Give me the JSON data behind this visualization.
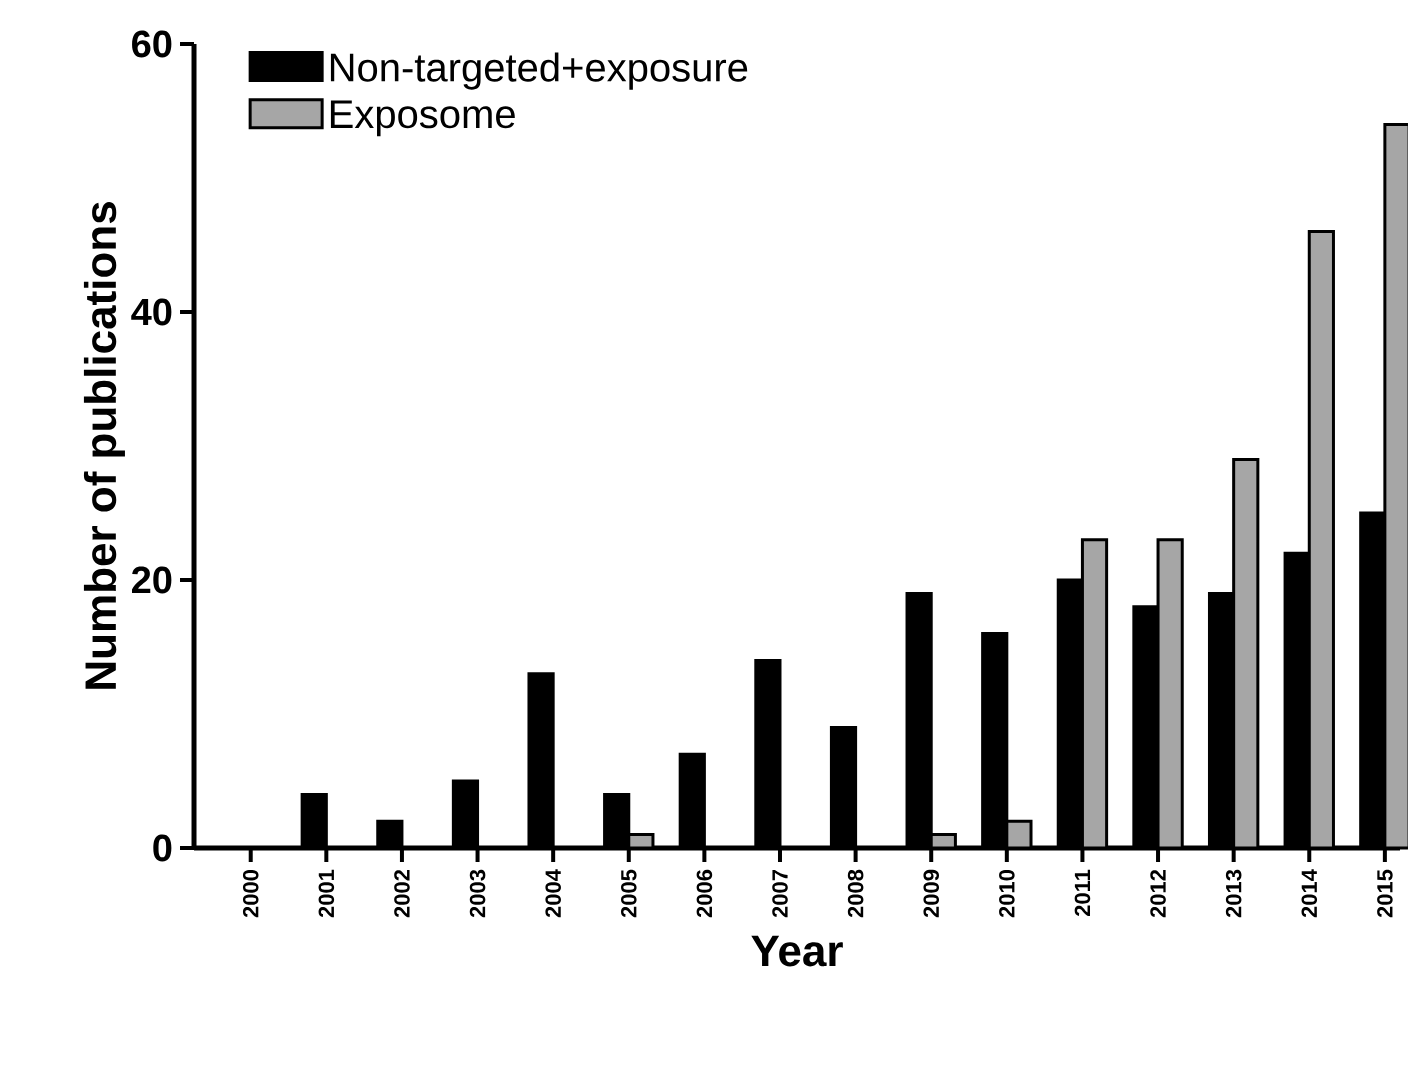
{
  "chart_data": {
    "type": "bar",
    "xlabel": "Year",
    "ylabel": "Number of publications",
    "categories": [
      "2000",
      "2001",
      "2002",
      "2003",
      "2004",
      "2005",
      "2006",
      "2007",
      "2008",
      "2009",
      "2010",
      "2011",
      "2012",
      "2013",
      "2014",
      "2015"
    ],
    "series": [
      {
        "name": "Non-targeted+exposure",
        "color": "#000000",
        "values": [
          0,
          4,
          2,
          5,
          13,
          4,
          7,
          14,
          9,
          19,
          16,
          20,
          18,
          19,
          22,
          25
        ]
      },
      {
        "name": "Exposome",
        "color": "#a6a6a6",
        "values": [
          0,
          0,
          0,
          0,
          0,
          1,
          0,
          0,
          0,
          1,
          2,
          23,
          23,
          29,
          46,
          54
        ]
      }
    ],
    "ylim": [
      0,
      60
    ],
    "yticks": [
      0,
      20,
      40,
      60
    ],
    "legend": "top left",
    "grid": false
  }
}
